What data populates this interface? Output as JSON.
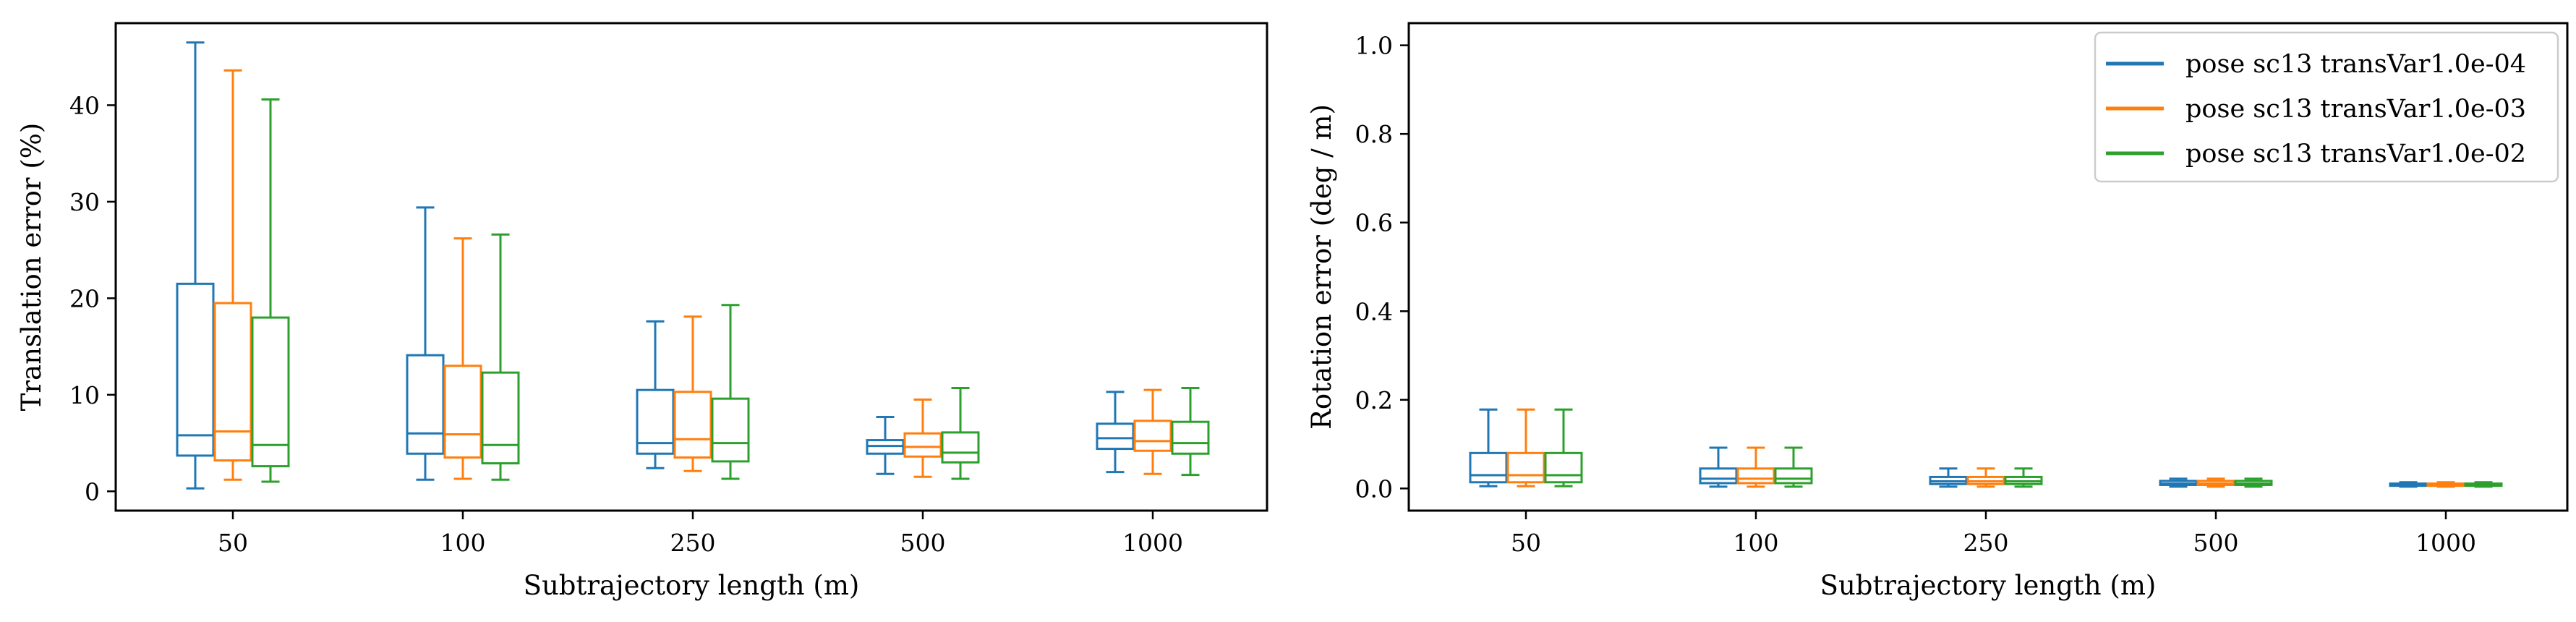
{
  "chart_data": [
    {
      "type": "box",
      "xlabel": "Subtrajectory length (m)",
      "ylabel": "Translation error (%)",
      "categories": [
        "50",
        "100",
        "250",
        "500",
        "1000"
      ],
      "ylim": [
        -2,
        48.5
      ],
      "yticks": [
        0,
        10,
        20,
        30,
        40
      ],
      "grid": false,
      "series": [
        {
          "name": "pose sc13 transVar1.0e-04",
          "color": "#1f77b4",
          "boxes": [
            {
              "whislo": 0.3,
              "q1": 3.7,
              "med": 5.8,
              "q3": 21.5,
              "whishi": 46.5
            },
            {
              "whislo": 1.2,
              "q1": 3.9,
              "med": 6.0,
              "q3": 14.1,
              "whishi": 29.4
            },
            {
              "whislo": 2.4,
              "q1": 3.9,
              "med": 5.0,
              "q3": 10.5,
              "whishi": 17.6
            },
            {
              "whislo": 1.8,
              "q1": 3.9,
              "med": 4.7,
              "q3": 5.3,
              "whishi": 7.7
            },
            {
              "whislo": 2.0,
              "q1": 4.4,
              "med": 5.5,
              "q3": 7.0,
              "whishi": 10.3
            }
          ]
        },
        {
          "name": "pose sc13 transVar1.0e-03",
          "color": "#ff7f0e",
          "boxes": [
            {
              "whislo": 1.2,
              "q1": 3.2,
              "med": 6.2,
              "q3": 19.5,
              "whishi": 43.6
            },
            {
              "whislo": 1.3,
              "q1": 3.5,
              "med": 5.9,
              "q3": 13.0,
              "whishi": 26.2
            },
            {
              "whislo": 2.1,
              "q1": 3.5,
              "med": 5.4,
              "q3": 10.3,
              "whishi": 18.1
            },
            {
              "whislo": 1.5,
              "q1": 3.6,
              "med": 4.6,
              "q3": 6.0,
              "whishi": 9.5
            },
            {
              "whislo": 1.8,
              "q1": 4.2,
              "med": 5.2,
              "q3": 7.3,
              "whishi": 10.5
            }
          ]
        },
        {
          "name": "pose sc13 transVar1.0e-02",
          "color": "#2ca02c",
          "boxes": [
            {
              "whislo": 1.0,
              "q1": 2.6,
              "med": 4.8,
              "q3": 18.0,
              "whishi": 40.6
            },
            {
              "whislo": 1.2,
              "q1": 2.9,
              "med": 4.8,
              "q3": 12.3,
              "whishi": 26.6
            },
            {
              "whislo": 1.3,
              "q1": 3.1,
              "med": 5.0,
              "q3": 9.6,
              "whishi": 19.3
            },
            {
              "whislo": 1.3,
              "q1": 3.0,
              "med": 4.0,
              "q3": 6.1,
              "whishi": 10.7
            },
            {
              "whislo": 1.7,
              "q1": 3.9,
              "med": 5.0,
              "q3": 7.2,
              "whishi": 10.7
            }
          ]
        }
      ]
    },
    {
      "type": "box",
      "xlabel": "Subtrajectory length (m)",
      "ylabel": "Rotation error (deg / m)",
      "categories": [
        "50",
        "100",
        "250",
        "500",
        "1000"
      ],
      "ylim": [
        -0.05,
        1.05
      ],
      "yticks": [
        "0.0",
        "0.2",
        "0.4",
        "0.6",
        "0.8",
        "1.0"
      ],
      "grid": false,
      "legend": "top-right",
      "series": [
        {
          "name": "pose sc13 transVar1.0e-04",
          "color": "#1f77b4",
          "boxes": [
            {
              "whislo": 0.005,
              "q1": 0.014,
              "med": 0.03,
              "q3": 0.08,
              "whishi": 0.178
            },
            {
              "whislo": 0.004,
              "q1": 0.012,
              "med": 0.022,
              "q3": 0.045,
              "whishi": 0.092
            },
            {
              "whislo": 0.004,
              "q1": 0.01,
              "med": 0.016,
              "q3": 0.026,
              "whishi": 0.045
            },
            {
              "whislo": 0.004,
              "q1": 0.008,
              "med": 0.011,
              "q3": 0.017,
              "whishi": 0.022
            },
            {
              "whislo": 0.004,
              "q1": 0.006,
              "med": 0.008,
              "q3": 0.011,
              "whishi": 0.014
            }
          ]
        },
        {
          "name": "pose sc13 transVar1.0e-03",
          "color": "#ff7f0e",
          "boxes": [
            {
              "whislo": 0.005,
              "q1": 0.014,
              "med": 0.03,
              "q3": 0.08,
              "whishi": 0.178
            },
            {
              "whislo": 0.004,
              "q1": 0.012,
              "med": 0.022,
              "q3": 0.045,
              "whishi": 0.092
            },
            {
              "whislo": 0.004,
              "q1": 0.01,
              "med": 0.016,
              "q3": 0.026,
              "whishi": 0.045
            },
            {
              "whislo": 0.004,
              "q1": 0.008,
              "med": 0.011,
              "q3": 0.017,
              "whishi": 0.022
            },
            {
              "whislo": 0.004,
              "q1": 0.006,
              "med": 0.008,
              "q3": 0.011,
              "whishi": 0.014
            }
          ]
        },
        {
          "name": "pose sc13 transVar1.0e-02",
          "color": "#2ca02c",
          "boxes": [
            {
              "whislo": 0.005,
              "q1": 0.014,
              "med": 0.03,
              "q3": 0.08,
              "whishi": 0.178
            },
            {
              "whislo": 0.004,
              "q1": 0.012,
              "med": 0.022,
              "q3": 0.045,
              "whishi": 0.092
            },
            {
              "whislo": 0.004,
              "q1": 0.01,
              "med": 0.016,
              "q3": 0.026,
              "whishi": 0.045
            },
            {
              "whislo": 0.004,
              "q1": 0.008,
              "med": 0.011,
              "q3": 0.017,
              "whishi": 0.022
            },
            {
              "whislo": 0.004,
              "q1": 0.006,
              "med": 0.008,
              "q3": 0.011,
              "whishi": 0.014
            }
          ]
        }
      ]
    }
  ]
}
